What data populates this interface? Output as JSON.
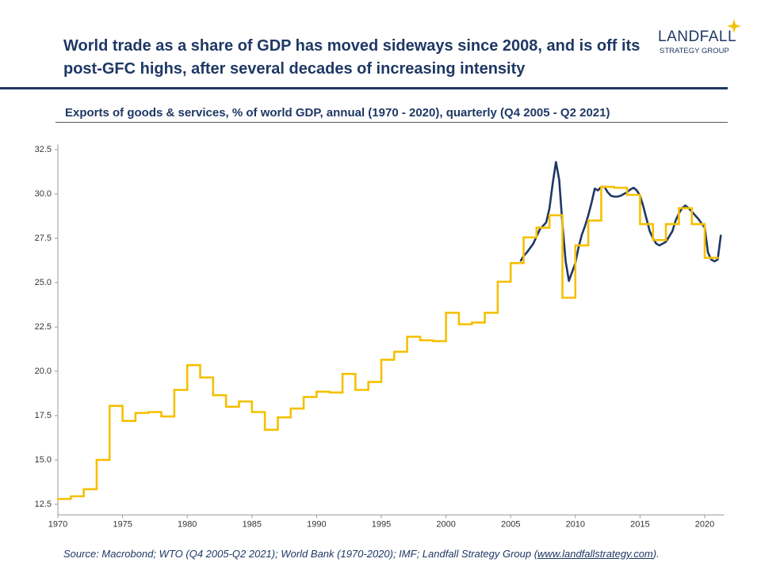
{
  "header": {
    "title": "World trade as a share of GDP has moved sideways since 2008, and is off its post-GFC highs, after several decades of increasing intensity",
    "logo_name": "LANDFALL",
    "logo_tagline": "STRATEGY GROUP"
  },
  "chart_data": {
    "type": "line",
    "subtitle": "Exports of goods & services, % of world GDP, annual (1970 - 2020), quarterly (Q4 2005 - Q2 2021)",
    "xlim": [
      1970,
      2021.5
    ],
    "ylim": [
      11.9,
      32.8
    ],
    "xticks": [
      1970,
      1975,
      1980,
      1985,
      1990,
      1995,
      2000,
      2005,
      2010,
      2015,
      2020
    ],
    "yticks": [
      12.5,
      {
        "value": 15,
        "label": "15.0"
      },
      17.5,
      {
        "value": 20,
        "label": "20.0"
      },
      22.5,
      {
        "value": 25,
        "label": "25.0"
      },
      27.5,
      {
        "value": 30,
        "label": "30.0"
      },
      32.5
    ],
    "series": [
      {
        "color": "#1f3864",
        "step": false,
        "x": [
          2005.75,
          2006,
          2006.25,
          2006.5,
          2006.75,
          2007,
          2007.25,
          2007.5,
          2007.75,
          2008,
          2008.25,
          2008.5,
          2008.75,
          2009,
          2009.25,
          2009.5,
          2009.75,
          2010,
          2010.25,
          2010.5,
          2010.75,
          2011,
          2011.25,
          2011.5,
          2011.75,
          2012,
          2012.25,
          2012.5,
          2012.75,
          2013,
          2013.25,
          2013.5,
          2013.75,
          2014,
          2014.25,
          2014.5,
          2014.75,
          2015,
          2015.25,
          2015.5,
          2015.75,
          2016,
          2016.25,
          2016.5,
          2016.75,
          2017,
          2017.25,
          2017.5,
          2017.75,
          2018,
          2018.25,
          2018.5,
          2018.75,
          2019,
          2019.25,
          2019.5,
          2019.75,
          2020,
          2020.25,
          2020.5,
          2020.75,
          2021,
          2021.25
        ],
        "values": [
          26.2,
          26.5,
          26.7,
          26.95,
          27.2,
          27.6,
          28.0,
          28.2,
          28.4,
          29.2,
          30.6,
          31.8,
          30.8,
          28.3,
          26.2,
          25.1,
          25.6,
          26.1,
          27.0,
          27.7,
          28.2,
          28.8,
          29.5,
          30.3,
          30.2,
          30.4,
          30.4,
          30.1,
          29.9,
          29.85,
          29.85,
          29.9,
          30.0,
          30.1,
          30.25,
          30.35,
          30.2,
          29.9,
          29.3,
          28.6,
          27.9,
          27.5,
          27.2,
          27.1,
          27.2,
          27.3,
          27.6,
          27.9,
          28.5,
          28.9,
          29.2,
          29.35,
          29.2,
          29.0,
          28.8,
          28.6,
          28.35,
          28.1,
          26.7,
          26.3,
          26.2,
          26.3,
          27.7
        ]
      },
      {
        "color": "#f5c000",
        "step": true,
        "x": [
          1970,
          1971,
          1972,
          1973,
          1974,
          1975,
          1976,
          1977,
          1978,
          1979,
          1980,
          1981,
          1982,
          1983,
          1984,
          1985,
          1986,
          1987,
          1988,
          1989,
          1990,
          1991,
          1992,
          1993,
          1994,
          1995,
          1996,
          1997,
          1998,
          1999,
          2000,
          2001,
          2002,
          2003,
          2004,
          2005,
          2006,
          2007,
          2008,
          2009,
          2010,
          2011,
          2012,
          2013,
          2014,
          2015,
          2016,
          2017,
          2018,
          2019,
          2020
        ],
        "values": [
          12.8,
          12.95,
          13.35,
          15.0,
          18.05,
          17.2,
          17.65,
          17.7,
          17.45,
          18.95,
          20.35,
          19.65,
          18.65,
          18.0,
          18.3,
          17.7,
          16.7,
          17.4,
          17.9,
          18.55,
          18.85,
          18.8,
          19.85,
          18.95,
          19.4,
          20.65,
          21.1,
          21.95,
          21.75,
          21.7,
          23.3,
          22.65,
          22.75,
          23.3,
          25.05,
          26.1,
          27.55,
          28.1,
          28.8,
          24.15,
          27.1,
          28.5,
          30.4,
          30.35,
          29.95,
          28.3,
          27.4,
          28.3,
          29.2,
          28.3,
          26.4
        ]
      }
    ]
  },
  "footer": {
    "source": "Source: Macrobond; WTO (Q4 2005-Q2 2021); World Bank (1970-2020); IMF; Landfall Strategy Group (",
    "link": "www.landfallstrategy.com",
    "end": ")."
  }
}
